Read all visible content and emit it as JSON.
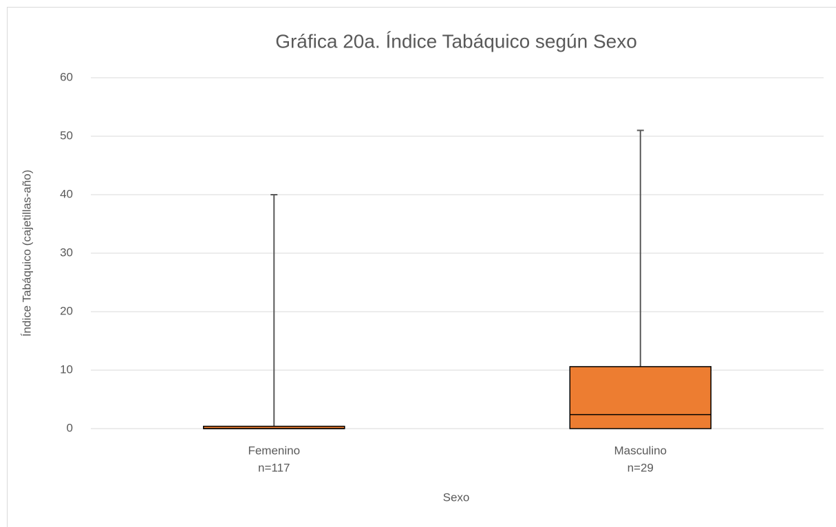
{
  "chart_data": {
    "type": "box",
    "title": "Gráfica 20a. Índice Tabáquico según Sexo",
    "x_label": "Sexo",
    "y_label": "Índice Tabáquico (cajetillas-año)",
    "categories": [
      [
        "Femenino",
        "n=117"
      ],
      [
        "Masculino",
        "n=29"
      ]
    ],
    "boxes": [
      {
        "min": 0,
        "q1": 0,
        "median": 0,
        "q3": 0.4,
        "max": 40
      },
      {
        "min": 0,
        "q1": 0,
        "median": 2.4,
        "q3": 10.6,
        "max": 51
      }
    ],
    "color": "#ed7d31",
    "ylim": [
      0,
      60
    ],
    "yticks": [
      0,
      10,
      20,
      30,
      40,
      50,
      60
    ],
    "grid": true
  }
}
